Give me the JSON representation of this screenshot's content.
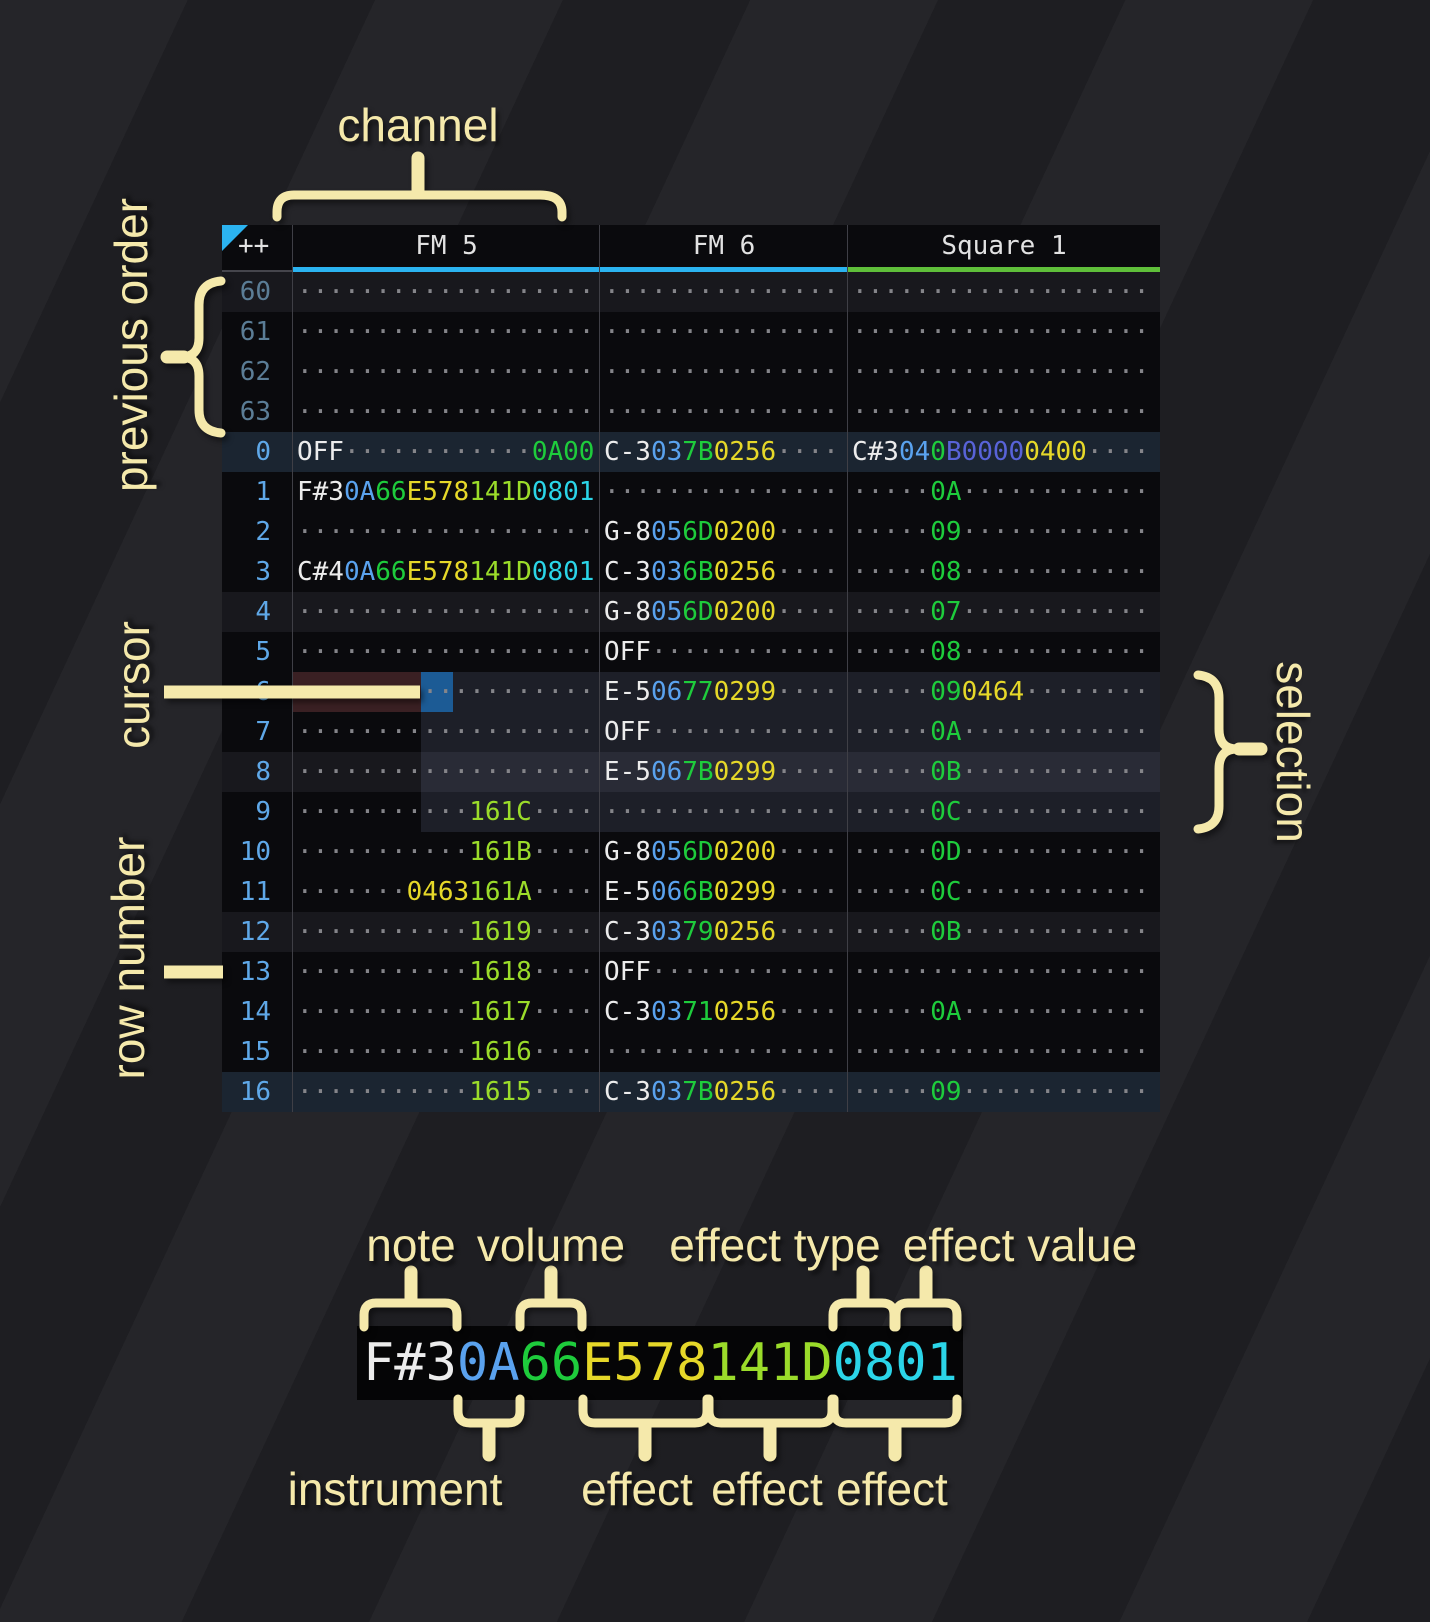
{
  "annotations": {
    "channel": "channel",
    "previous_order": "previous order",
    "cursor": "cursor",
    "row_number": "row number",
    "selection": "selection",
    "note": "note",
    "volume": "volume",
    "effect_type": "effect type",
    "effect_value": "effect value",
    "instrument": "instrument",
    "effect_1": "effect",
    "effect_2": "effect",
    "effect_3": "effect"
  },
  "header": {
    "corner": "++",
    "channels": [
      {
        "name": "FM 5",
        "accent": "blue",
        "width_class": "w-fm5"
      },
      {
        "name": "FM 6",
        "accent": "blue",
        "width_class": "w-fm6"
      },
      {
        "name": "Square 1",
        "accent": "green",
        "width_class": "w-sq"
      }
    ]
  },
  "pattern": {
    "rows": [
      {
        "num": "60",
        "prev": true,
        "hl": "minor",
        "cells": [
          [
            [
              "···················",
              "dim"
            ]
          ],
          [
            [
              "···············",
              "dim"
            ]
          ],
          [
            [
              "···················",
              "dim"
            ]
          ]
        ]
      },
      {
        "num": "61",
        "prev": true,
        "hl": "none",
        "cells": [
          [
            [
              "···················",
              "dim"
            ]
          ],
          [
            [
              "···············",
              "dim"
            ]
          ],
          [
            [
              "···················",
              "dim"
            ]
          ]
        ]
      },
      {
        "num": "62",
        "prev": true,
        "hl": "none",
        "cells": [
          [
            [
              "···················",
              "dim"
            ]
          ],
          [
            [
              "···············",
              "dim"
            ]
          ],
          [
            [
              "···················",
              "dim"
            ]
          ]
        ]
      },
      {
        "num": "63",
        "prev": true,
        "hl": "none",
        "cells": [
          [
            [
              "···················",
              "dim"
            ]
          ],
          [
            [
              "···············",
              "dim"
            ]
          ],
          [
            [
              "···················",
              "dim"
            ]
          ]
        ]
      },
      {
        "num": "0",
        "prev": false,
        "hl": "major",
        "cells": [
          [
            [
              "OFF",
              "note"
            ],
            [
              "············",
              "dim"
            ],
            [
              "0A00",
              "vol"
            ]
          ],
          [
            [
              "C-3",
              "note"
            ],
            [
              "03",
              "ins"
            ],
            [
              "7B",
              "vol"
            ],
            [
              "0256",
              "fxY"
            ],
            [
              "····",
              "dim"
            ]
          ],
          [
            [
              "C#3",
              "note"
            ],
            [
              "04",
              "ins"
            ],
            [
              "0",
              "vol"
            ],
            [
              "B0000",
              "fxV"
            ],
            [
              "0400",
              "fxY"
            ],
            [
              "····",
              "dim"
            ]
          ]
        ]
      },
      {
        "num": "1",
        "prev": false,
        "hl": "none",
        "cells": [
          [
            [
              "F#3",
              "note"
            ],
            [
              "0A",
              "ins"
            ],
            [
              "66",
              "vol"
            ],
            [
              "E578",
              "fxY"
            ],
            [
              "141D",
              "fxL"
            ],
            [
              "0801",
              "fxC"
            ]
          ],
          [
            [
              "···············",
              "dim"
            ]
          ],
          [
            [
              "·····",
              "dim"
            ],
            [
              "0A",
              "vol"
            ],
            [
              "············",
              "dim"
            ]
          ]
        ]
      },
      {
        "num": "2",
        "prev": false,
        "hl": "none",
        "cells": [
          [
            [
              "···················",
              "dim"
            ]
          ],
          [
            [
              "G-8",
              "note"
            ],
            [
              "05",
              "ins"
            ],
            [
              "6D",
              "vol"
            ],
            [
              "0200",
              "fxY"
            ],
            [
              "····",
              "dim"
            ]
          ],
          [
            [
              "·····",
              "dim"
            ],
            [
              "09",
              "vol"
            ],
            [
              "············",
              "dim"
            ]
          ]
        ]
      },
      {
        "num": "3",
        "prev": false,
        "hl": "none",
        "cells": [
          [
            [
              "C#4",
              "note"
            ],
            [
              "0A",
              "ins"
            ],
            [
              "66",
              "vol"
            ],
            [
              "E578",
              "fxY"
            ],
            [
              "141D",
              "fxL"
            ],
            [
              "0801",
              "fxC"
            ]
          ],
          [
            [
              "C-3",
              "note"
            ],
            [
              "03",
              "ins"
            ],
            [
              "6B",
              "vol"
            ],
            [
              "0256",
              "fxY"
            ],
            [
              "····",
              "dim"
            ]
          ],
          [
            [
              "·····",
              "dim"
            ],
            [
              "08",
              "vol"
            ],
            [
              "············",
              "dim"
            ]
          ]
        ]
      },
      {
        "num": "4",
        "prev": false,
        "hl": "minor",
        "cells": [
          [
            [
              "···················",
              "dim"
            ]
          ],
          [
            [
              "G-8",
              "note"
            ],
            [
              "05",
              "ins"
            ],
            [
              "6D",
              "vol"
            ],
            [
              "0200",
              "fxY"
            ],
            [
              "····",
              "dim"
            ]
          ],
          [
            [
              "·····",
              "dim"
            ],
            [
              "07",
              "vol"
            ],
            [
              "············",
              "dim"
            ]
          ]
        ]
      },
      {
        "num": "5",
        "prev": false,
        "hl": "none",
        "cells": [
          [
            [
              "···················",
              "dim"
            ]
          ],
          [
            [
              "OFF",
              "note"
            ],
            [
              "············",
              "dim"
            ]
          ],
          [
            [
              "·····",
              "dim"
            ],
            [
              "08",
              "vol"
            ],
            [
              "············",
              "dim"
            ]
          ]
        ]
      },
      {
        "num": "6",
        "prev": false,
        "hl": "none",
        "cells": [
          [
            [
              "···················",
              "dim"
            ]
          ],
          [
            [
              "E-5",
              "note"
            ],
            [
              "06",
              "ins"
            ],
            [
              "77",
              "vol"
            ],
            [
              "0299",
              "fxY"
            ],
            [
              "····",
              "dim"
            ]
          ],
          [
            [
              "·····",
              "dim"
            ],
            [
              "09",
              "vol"
            ],
            [
              "0464",
              "fxY"
            ],
            [
              "········",
              "dim"
            ]
          ]
        ]
      },
      {
        "num": "7",
        "prev": false,
        "hl": "none",
        "cells": [
          [
            [
              "···················",
              "dim"
            ]
          ],
          [
            [
              "OFF",
              "note"
            ],
            [
              "············",
              "dim"
            ]
          ],
          [
            [
              "·····",
              "dim"
            ],
            [
              "0A",
              "vol"
            ],
            [
              "············",
              "dim"
            ]
          ]
        ]
      },
      {
        "num": "8",
        "prev": false,
        "hl": "minor",
        "cells": [
          [
            [
              "···················",
              "dim"
            ]
          ],
          [
            [
              "E-5",
              "note"
            ],
            [
              "06",
              "ins"
            ],
            [
              "7B",
              "vol"
            ],
            [
              "0299",
              "fxY"
            ],
            [
              "····",
              "dim"
            ]
          ],
          [
            [
              "·····",
              "dim"
            ],
            [
              "0B",
              "vol"
            ],
            [
              "············",
              "dim"
            ]
          ]
        ]
      },
      {
        "num": "9",
        "prev": false,
        "hl": "none",
        "cells": [
          [
            [
              "···········",
              "dim"
            ],
            [
              "161C",
              "fxL"
            ],
            [
              "····",
              "dim"
            ]
          ],
          [
            [
              "···············",
              "dim"
            ]
          ],
          [
            [
              "·····",
              "dim"
            ],
            [
              "0C",
              "vol"
            ],
            [
              "············",
              "dim"
            ]
          ]
        ]
      },
      {
        "num": "10",
        "prev": false,
        "hl": "none",
        "cells": [
          [
            [
              "···········",
              "dim"
            ],
            [
              "161B",
              "fxL"
            ],
            [
              "····",
              "dim"
            ]
          ],
          [
            [
              "G-8",
              "note"
            ],
            [
              "05",
              "ins"
            ],
            [
              "6D",
              "vol"
            ],
            [
              "0200",
              "fxY"
            ],
            [
              "····",
              "dim"
            ]
          ],
          [
            [
              "·····",
              "dim"
            ],
            [
              "0D",
              "vol"
            ],
            [
              "············",
              "dim"
            ]
          ]
        ]
      },
      {
        "num": "11",
        "prev": false,
        "hl": "none",
        "cells": [
          [
            [
              "·······",
              "dim"
            ],
            [
              "0463",
              "fxY"
            ],
            [
              "161A",
              "fxL"
            ],
            [
              "····",
              "dim"
            ]
          ],
          [
            [
              "E-5",
              "note"
            ],
            [
              "06",
              "ins"
            ],
            [
              "6B",
              "vol"
            ],
            [
              "0299",
              "fxY"
            ],
            [
              "····",
              "dim"
            ]
          ],
          [
            [
              "·····",
              "dim"
            ],
            [
              "0C",
              "vol"
            ],
            [
              "············",
              "dim"
            ]
          ]
        ]
      },
      {
        "num": "12",
        "prev": false,
        "hl": "minor",
        "cells": [
          [
            [
              "···········",
              "dim"
            ],
            [
              "1619",
              "fxL"
            ],
            [
              "····",
              "dim"
            ]
          ],
          [
            [
              "C-3",
              "note"
            ],
            [
              "03",
              "ins"
            ],
            [
              "79",
              "vol"
            ],
            [
              "0256",
              "fxY"
            ],
            [
              "····",
              "dim"
            ]
          ],
          [
            [
              "·····",
              "dim"
            ],
            [
              "0B",
              "vol"
            ],
            [
              "············",
              "dim"
            ]
          ]
        ]
      },
      {
        "num": "13",
        "prev": false,
        "hl": "none",
        "cells": [
          [
            [
              "···········",
              "dim"
            ],
            [
              "1618",
              "fxL"
            ],
            [
              "····",
              "dim"
            ]
          ],
          [
            [
              "OFF",
              "note"
            ],
            [
              "············",
              "dim"
            ]
          ],
          [
            [
              "···················",
              "dim"
            ]
          ]
        ]
      },
      {
        "num": "14",
        "prev": false,
        "hl": "none",
        "cells": [
          [
            [
              "···········",
              "dim"
            ],
            [
              "1617",
              "fxL"
            ],
            [
              "····",
              "dim"
            ]
          ],
          [
            [
              "C-3",
              "note"
            ],
            [
              "03",
              "ins"
            ],
            [
              "71",
              "vol"
            ],
            [
              "0256",
              "fxY"
            ],
            [
              "····",
              "dim"
            ]
          ],
          [
            [
              "·····",
              "dim"
            ],
            [
              "0A",
              "vol"
            ],
            [
              "············",
              "dim"
            ]
          ]
        ]
      },
      {
        "num": "15",
        "prev": false,
        "hl": "none",
        "cells": [
          [
            [
              "···········",
              "dim"
            ],
            [
              "1616",
              "fxL"
            ],
            [
              "····",
              "dim"
            ]
          ],
          [
            [
              "···············",
              "dim"
            ]
          ],
          [
            [
              "···················",
              "dim"
            ]
          ]
        ]
      },
      {
        "num": "16",
        "prev": false,
        "hl": "major",
        "cells": [
          [
            [
              "···········",
              "dim"
            ],
            [
              "1615",
              "fxL"
            ],
            [
              "····",
              "dim"
            ]
          ],
          [
            [
              "C-3",
              "note"
            ],
            [
              "03",
              "ins"
            ],
            [
              "7B",
              "vol"
            ],
            [
              "0256",
              "fxY"
            ],
            [
              "····",
              "dim"
            ]
          ],
          [
            [
              "·····",
              "dim"
            ],
            [
              "09",
              "vol"
            ],
            [
              "············",
              "dim"
            ]
          ]
        ]
      }
    ]
  },
  "zoom_cell": {
    "segments": [
      [
        "F#3",
        "note"
      ],
      [
        "0A",
        "ins"
      ],
      [
        "66",
        "vol"
      ],
      [
        "E578",
        "fxY"
      ],
      [
        "141D",
        "fxL"
      ],
      [
        "0801",
        "fxC"
      ]
    ]
  },
  "colors": {
    "page_bg": "#202024",
    "table_bg": "#0a0a0d",
    "row_minor_bg": "#18181d",
    "row_major_bg": "#1b2531",
    "border": "#3f3f46",
    "header_text": "#e2e2e2",
    "rownum": "#5fa8e8",
    "rownum_prev": "#5b7d96",
    "accent_blue": "#2bb3f0",
    "accent_green": "#5fbf3a",
    "cream": "#f5e9ab",
    "cursor_blue": "#1c5b95",
    "cursor_row_red": "#3a2023",
    "selection_overlay": "rgba(132,142,188,0.16)",
    "note": "#ececec",
    "ins": "#5aa2ee",
    "vol": "#1ecc3c",
    "fx_yellow": "#e6d829",
    "fx_lime": "#9bdc2a",
    "fx_cyan": "#2bd5e8",
    "fx_violet": "#5863d8",
    "dots": "#85858a",
    "zoom_cell_bg": "#050506"
  }
}
